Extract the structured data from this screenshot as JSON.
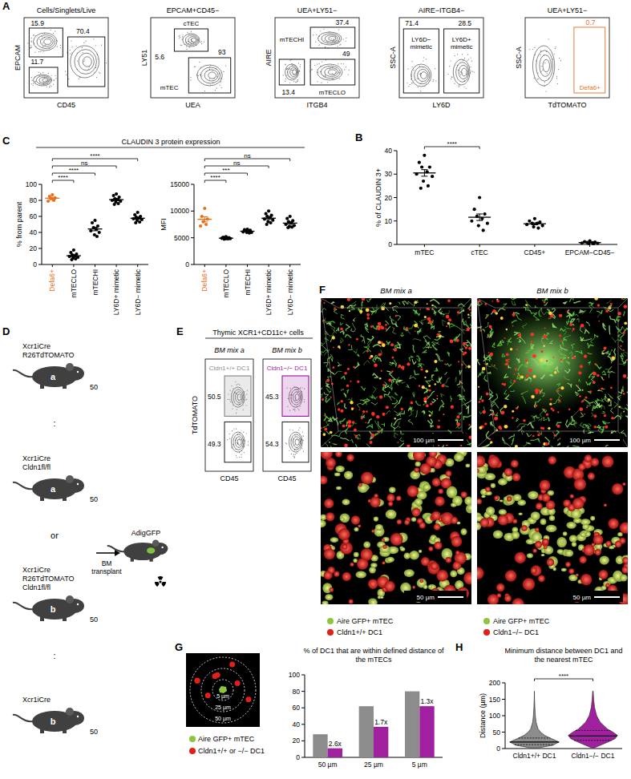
{
  "panel_labels": [
    "A",
    "B",
    "C",
    "D",
    "E",
    "F",
    "G",
    "H"
  ],
  "flow_gating": {
    "plots": [
      {
        "title": "Cells/Singlets/Live",
        "x_label": "CD45",
        "y_label": "EPCAM",
        "gates": [
          {
            "value": 15.9
          },
          {
            "value": 70.4
          },
          {
            "value": 11.7
          }
        ]
      },
      {
        "title": "EPCAM+CD45−",
        "x_label": "UEA",
        "y_label": "LY51",
        "gates": [
          {
            "label": "cTEC",
            "value": 5.6
          },
          {
            "label": "mTEC",
            "value": 93
          }
        ]
      },
      {
        "title": "UEA+LY51−",
        "x_label": "ITGB4",
        "y_label": "AIRE",
        "gates": [
          {
            "label": "mTECHI",
            "value": 37.4
          },
          {
            "label": "mTECLO",
            "value": 49
          },
          {
            "value": 13.4
          }
        ]
      },
      {
        "title": "AIRE−ITGB4−",
        "x_label": "LY6D",
        "y_label": "SSC-A",
        "gates": [
          {
            "label": "LY6D− mimetic",
            "value": 71.4
          },
          {
            "label": "LY6D+ mimetic",
            "value": 28.5
          }
        ]
      },
      {
        "title": "UEA+LY51−",
        "x_label": "TdTOMATO",
        "y_label": "SSC-A",
        "gates": [
          {
            "label": "Defa6+",
            "value": 0.7,
            "color": "#e8701a"
          }
        ]
      }
    ]
  },
  "panel_titles": {
    "C": "CLAUDIN 3 protein expression"
  },
  "chart_data": [
    {
      "type": "strip",
      "y_label": "% of CLAUDIN 3+",
      "categories": [
        "mTEC",
        "cTEC",
        "CD45+",
        "EPCAM−CD45−"
      ],
      "color": "#000000",
      "points": [
        [
          38,
          35,
          33,
          33,
          31,
          30,
          29,
          27,
          25,
          24
        ],
        [
          20,
          15,
          13,
          12,
          11,
          10,
          9,
          8,
          6
        ],
        [
          11,
          10,
          9.5,
          9,
          9,
          8.5,
          8,
          7.5,
          7
        ],
        [
          1.5,
          1.2,
          1,
          0.8,
          0.7,
          0.6,
          0.5,
          0.4,
          0.3
        ]
      ],
      "mean": [
        30.5,
        11.6,
        8.8,
        0.8
      ],
      "sem": [
        1.4,
        1.4,
        0.4,
        0.13
      ],
      "ylim": [
        0,
        40
      ],
      "yticks": [
        0,
        10,
        20,
        30,
        40
      ],
      "significance": [
        {
          "pair": [
            0,
            1
          ],
          "label": "****"
        }
      ]
    },
    {
      "type": "strip",
      "y_label": "% from parent",
      "categories": [
        "Defa6+",
        "mTECLO",
        "mTECHI",
        "LY6D+ mimetic",
        "LY6D− mimetic"
      ],
      "colors": [
        "#e8701a",
        "#000000",
        "#000000",
        "#000000",
        "#000000"
      ],
      "points": [
        [
          87,
          85,
          83,
          82,
          80,
          79
        ],
        [
          18,
          15,
          13,
          12,
          11,
          10,
          9,
          8,
          7,
          6
        ],
        [
          55,
          52,
          48,
          46,
          44,
          42,
          40,
          37,
          35
        ],
        [
          88,
          86,
          84,
          82,
          81,
          80,
          79,
          78,
          76,
          75
        ],
        [
          65,
          62,
          60,
          59,
          58,
          57,
          56,
          55,
          53,
          52
        ]
      ],
      "mean": [
        82.7,
        10.9,
        44.3,
        80.9,
        57.7
      ],
      "sem": [
        1.2,
        1.2,
        2.2,
        1.3,
        1.2
      ],
      "ylim": [
        0,
        100
      ],
      "yticks": [
        0,
        20,
        40,
        60,
        80,
        100
      ],
      "significance": [
        {
          "pair": [
            0,
            1
          ],
          "label": "****"
        },
        {
          "pair": [
            0,
            2
          ],
          "label": "****"
        },
        {
          "pair": [
            0,
            3
          ],
          "label": "ns"
        },
        {
          "pair": [
            0,
            4
          ],
          "label": "****"
        }
      ]
    },
    {
      "type": "strip",
      "y_label": "MFI",
      "categories": [
        "Defa6+",
        "mTECLO",
        "mTECHI",
        "LY6D+ mimetic",
        "LY6D− mimetic"
      ],
      "colors": [
        "#e8701a",
        "#000000",
        "#000000",
        "#000000",
        "#000000"
      ],
      "points": [
        [
          10500,
          9000,
          8500,
          8000,
          7500,
          7200
        ],
        [
          5200,
          5100,
          5000,
          4950,
          4900,
          4900,
          4850,
          4800,
          4800,
          4750
        ],
        [
          6600,
          6500,
          6400,
          6300,
          6200,
          6100,
          6000,
          6000,
          5900
        ],
        [
          10000,
          9500,
          9200,
          9000,
          8800,
          8500,
          8300,
          8000,
          7800,
          7500
        ],
        [
          9000,
          8600,
          8200,
          8000,
          7800,
          7500,
          7300,
          7100,
          7000,
          6900
        ]
      ],
      "mean": [
        8450,
        4925,
        6222,
        8660,
        7740
      ],
      "sem": [
        480,
        45,
        80,
        250,
        220
      ],
      "ylim": [
        0,
        15000
      ],
      "yticks": [
        0,
        5000,
        10000,
        15000
      ],
      "significance": [
        {
          "pair": [
            0,
            1
          ],
          "label": "****"
        },
        {
          "pair": [
            0,
            2
          ],
          "label": "***"
        },
        {
          "pair": [
            0,
            3
          ],
          "label": "ns"
        },
        {
          "pair": [
            0,
            4
          ],
          "label": "ns"
        }
      ]
    },
    {
      "type": "bar",
      "title": "% of DC1 that are within defined distance of the mTECs",
      "categories": [
        "50 µm",
        "25 µm",
        "5 µm"
      ],
      "series": [
        {
          "color": "#8c8c8c",
          "values": [
            28,
            62,
            80
          ]
        },
        {
          "color": "#a020a0",
          "values": [
            11,
            37,
            62
          ]
        }
      ],
      "annotations": [
        "2.6x",
        "1.7x",
        "1.3x"
      ],
      "ylim": [
        0,
        100
      ],
      "yticks": [
        0,
        20,
        40,
        60,
        80,
        100
      ]
    },
    {
      "type": "violin",
      "title": "Minimum distance between DC1 and the nearest mTEC",
      "y_label": "Distance (µm)",
      "categories": [
        "Cldn1+/+ DC1",
        "Cldn1−/− DC1"
      ],
      "colors": [
        "#8c8c8c",
        "#a020a0"
      ],
      "density_y": [
        2,
        10,
        20,
        30,
        40,
        50,
        60,
        80,
        100,
        125,
        150,
        175
      ],
      "density": [
        [
          0.15,
          0.75,
          1.0,
          0.7,
          0.42,
          0.25,
          0.15,
          0.07,
          0.04,
          0.02,
          0.008,
          0
        ],
        [
          0.05,
          0.3,
          0.62,
          0.9,
          1.0,
          0.82,
          0.58,
          0.3,
          0.15,
          0.07,
          0.03,
          0.01
        ]
      ],
      "quartiles": [
        [
          12,
          20,
          32
        ],
        [
          25,
          38,
          55
        ]
      ],
      "ylim": [
        0,
        200
      ],
      "yticks": [
        0,
        50,
        100,
        150,
        200
      ],
      "significance": [
        {
          "pair": [
            0,
            1
          ],
          "label": "****"
        }
      ]
    }
  ],
  "mouse_diagram": {
    "donors": [
      {
        "genotype": [
          "Xcr1iCre",
          "R26TdTOMATO"
        ],
        "mix": "a",
        "ratio": 50
      },
      {
        "genotype": [
          "Xcr1iCre",
          "Cldn1fl/fl"
        ],
        "mix": "a",
        "ratio": 50
      },
      {
        "genotype": [
          "Xcr1iCre",
          "R26TdTOMATO",
          "Cldn1fl/fl"
        ],
        "mix": "b",
        "ratio": 50
      },
      {
        "genotype": [
          "Xcr1iCre"
        ],
        "mix": "b",
        "ratio": 50
      }
    ],
    "separators": [
      ":",
      "or",
      ":"
    ],
    "arrow_label": "BM transplant",
    "recipient": "AdigGFP"
  },
  "dc1_flow": {
    "title": "Thymic XCR1+CD11c+ cells",
    "x_label": "CD45",
    "y_label": "TdTOMATO",
    "plots": [
      {
        "title": "BM mix a",
        "gate_label": "Cldn1+/+ DC1",
        "gate_color": "#8c8c8c",
        "values": [
          50.5,
          49.3
        ]
      },
      {
        "title": "BM mix b",
        "gate_label": "Cldn1−/− DC1",
        "gate_color": "#a020a0",
        "values": [
          45.3,
          54.3
        ]
      }
    ]
  },
  "imaging": {
    "columns": [
      {
        "title": "BM mix a",
        "scale_bars": [
          "100 µm",
          "50 µm"
        ],
        "legend": [
          {
            "label": "Aire GFP+ mTEC",
            "color": "#8cc63f"
          },
          {
            "label": "Cldn1+/+ DC1",
            "color": "#e0201b"
          }
        ]
      },
      {
        "title": "BM mix b",
        "scale_bars": [
          "100 µm",
          "50 µm"
        ],
        "legend": [
          {
            "label": "Aire GFP+ mTEC",
            "color": "#8cc63f"
          },
          {
            "label": "Cldn1−/− DC1",
            "color": "#e0201b"
          }
        ]
      }
    ]
  },
  "distance_diagram": {
    "rings": [
      "5 µm",
      "25 µm",
      "50 µm"
    ],
    "legend": [
      {
        "label": "Aire GFP+ mTEC",
        "color": "#8cc63f"
      },
      {
        "label": "Cldn1+/+ or −/− DC1",
        "color": "#e0201b"
      }
    ]
  }
}
